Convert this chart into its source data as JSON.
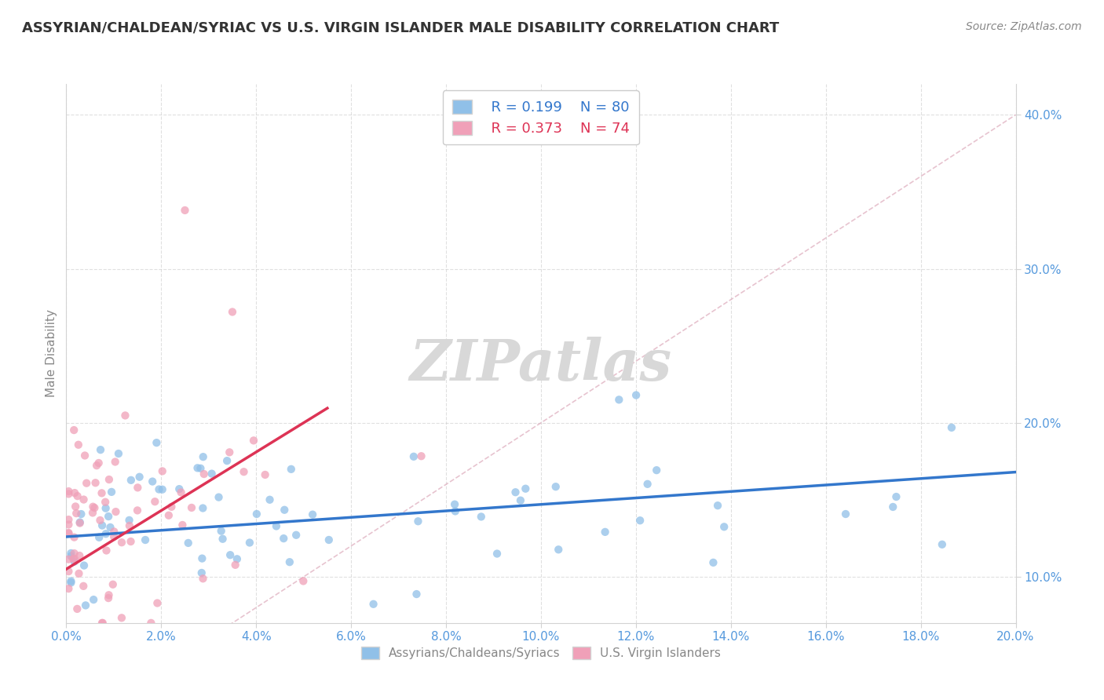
{
  "title": "ASSYRIAN/CHALDEAN/SYRIAC VS U.S. VIRGIN ISLANDER MALE DISABILITY CORRELATION CHART",
  "source": "Source: ZipAtlas.com",
  "xlabel_label1": "Assyrians/Chaldeans/Syriacs",
  "xlabel_label2": "U.S. Virgin Islanders",
  "ylabel": "Male Disability",
  "xlim": [
    0.0,
    0.2
  ],
  "ylim": [
    0.07,
    0.42
  ],
  "ytick_vals": [
    0.1,
    0.2,
    0.3,
    0.4
  ],
  "ytick_labels": [
    "10.0%",
    "20.0%",
    "30.0%",
    "40.0%"
  ],
  "xtick_vals": [
    0.0,
    0.02,
    0.04,
    0.06,
    0.08,
    0.1,
    0.12,
    0.14,
    0.16,
    0.18,
    0.2
  ],
  "xtick_labels": [
    "0.0%",
    "2.0%",
    "4.0%",
    "6.0%",
    "8.0%",
    "10.0%",
    "12.0%",
    "14.0%",
    "16.0%",
    "18.0%",
    "20.0%"
  ],
  "R_blue": 0.199,
  "N_blue": 80,
  "R_pink": 0.373,
  "N_pink": 74,
  "color_blue": "#90c0e8",
  "color_pink": "#f0a0b8",
  "trend_blue": "#3377cc",
  "trend_pink": "#dd3355",
  "diag_color": "#ddaabb",
  "watermark_color": "#d8d8d8",
  "tick_color": "#5599dd",
  "grid_color": "#cccccc"
}
